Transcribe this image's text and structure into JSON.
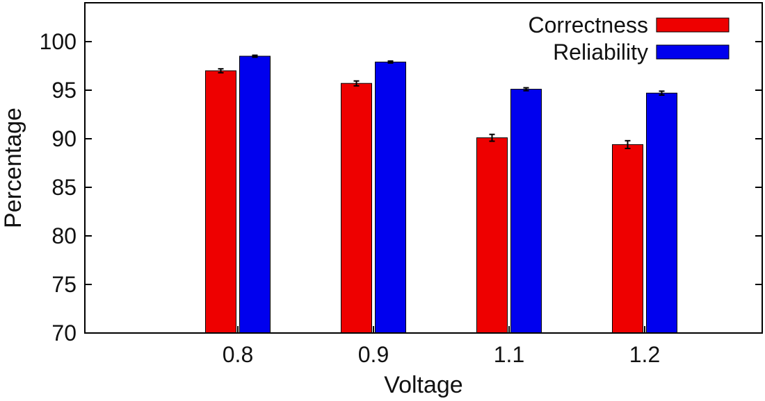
{
  "chart_data": {
    "type": "bar",
    "categories": [
      "0.8",
      "0.9",
      "1.1",
      "1.2"
    ],
    "series": [
      {
        "name": "Correctness",
        "color": "#ee0000",
        "values": [
          97.0,
          95.7,
          90.1,
          89.4
        ],
        "errors": [
          0.2,
          0.25,
          0.35,
          0.4
        ]
      },
      {
        "name": "Reliability",
        "color": "#0000ee",
        "values": [
          98.5,
          97.9,
          95.1,
          94.7
        ],
        "errors": [
          0.1,
          0.1,
          0.15,
          0.2
        ]
      }
    ],
    "xlabel": "Voltage",
    "ylabel": "Percentage",
    "ylim": [
      70,
      104
    ],
    "yticks": [
      "70",
      "75",
      "80",
      "85",
      "90",
      "95",
      "100"
    ],
    "legend_position": "top-right",
    "grid": false
  }
}
